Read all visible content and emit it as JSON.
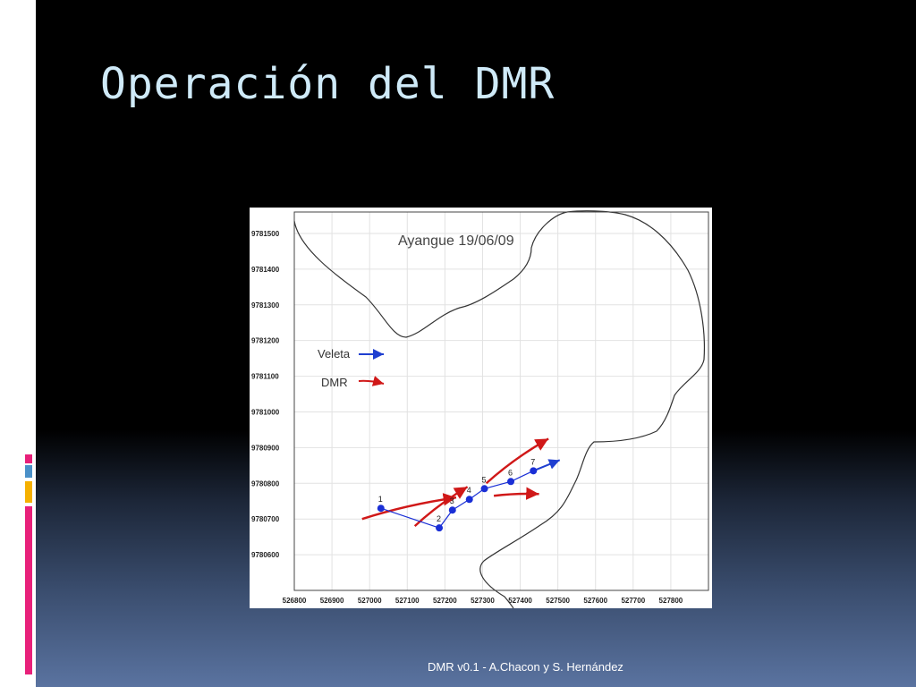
{
  "slide": {
    "title": "Operación del DMR",
    "footer": "DMR v0.1 - A.Chacon y S. Hernández",
    "accent_colors": [
      "#e8207a",
      "#4a90c8",
      "#f5b000"
    ]
  },
  "chart_data": {
    "type": "scatter",
    "title": "Ayangue 19/06/09",
    "xlabel": "",
    "ylabel": "",
    "x_ticks": [
      526800,
      526900,
      527000,
      527100,
      527200,
      527300,
      527400,
      527500,
      527600,
      527700,
      527800
    ],
    "y_ticks": [
      9780600,
      9780700,
      9780800,
      9780900,
      9781000,
      9781100,
      9781200,
      9781300,
      9781400,
      9781500
    ],
    "xlim": [
      526800,
      527900
    ],
    "ylim": [
      9780500,
      9781560
    ],
    "grid": true,
    "legend": {
      "placement": "left",
      "entries": [
        {
          "label": "Veleta",
          "color": "#1f3fd0"
        },
        {
          "label": "DMR",
          "color": "#d01818"
        }
      ]
    },
    "points": [
      {
        "label": "1",
        "x": 527030,
        "y": 9780730
      },
      {
        "label": "2",
        "x": 527185,
        "y": 9780675
      },
      {
        "label": "3",
        "x": 527220,
        "y": 9780725
      },
      {
        "label": "4",
        "x": 527265,
        "y": 9780755
      },
      {
        "label": "5",
        "x": 527305,
        "y": 9780785
      },
      {
        "label": "6",
        "x": 527375,
        "y": 9780805
      },
      {
        "label": "7",
        "x": 527435,
        "y": 9780835
      }
    ],
    "veleta_vectors": [
      {
        "x0": 527435,
        "y0": 9780835,
        "x1": 527505,
        "y1": 9780865
      }
    ],
    "dmr_vectors": [
      {
        "x0": 526980,
        "y0": 9780700,
        "x1": 527230,
        "y1": 9780760
      },
      {
        "x0": 527120,
        "y0": 9780680,
        "x1": 527260,
        "y1": 9780790
      },
      {
        "x0": 527310,
        "y0": 9780800,
        "x1": 527475,
        "y1": 9780925
      },
      {
        "x0": 527330,
        "y0": 9780765,
        "x1": 527450,
        "y1": 9780770
      }
    ],
    "series_colors": {
      "points": "#1a2fd6",
      "dmr": "#d01818",
      "veleta": "#1f3fd0",
      "coast": "#333333"
    }
  }
}
